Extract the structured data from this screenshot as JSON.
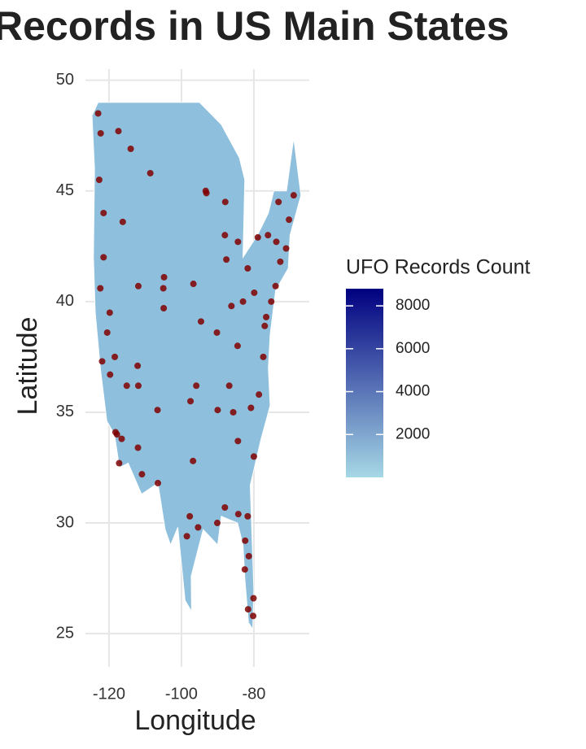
{
  "chart_data": {
    "type": "map-scatter",
    "title": "Records in US Main States",
    "xlabel": "Longitude",
    "ylabel": "Latitude",
    "xlim": [
      -126.5,
      -64.7
    ],
    "ylim": [
      23.5,
      50.5
    ],
    "xticks": [
      -120,
      -100,
      -80
    ],
    "yticks": [
      25,
      30,
      35,
      40,
      45,
      50
    ],
    "grid": true,
    "point_color": "#800000",
    "x": [
      -122.3,
      -122.7,
      -123.0,
      -121.5,
      -120.5,
      -117.4,
      -119.7,
      -116.2,
      -114.0,
      -111.9,
      -112.0,
      -104.9,
      -105.0,
      -108.6,
      -106.6,
      -110.9,
      -111.9,
      -115.1,
      -117.2,
      -118.2,
      -118.4,
      -121.9,
      -122.4,
      -121.5,
      -119.8,
      -117.8,
      -116.5,
      -112.1,
      -106.5,
      -104.8,
      -97.5,
      -96.8,
      -95.4,
      -98.5,
      -97.7,
      -95.9,
      -94.6,
      -90.2,
      -93.3,
      -96.7,
      -87.6,
      -88.0,
      -86.2,
      -84.4,
      -83.0,
      -81.7,
      -84.5,
      -85.7,
      -86.8,
      -90.0,
      -90.1,
      -84.4,
      -81.4,
      -80.2,
      -82.5,
      -81.7,
      -80.8,
      -78.6,
      -77.4,
      -77.0,
      -76.6,
      -75.2,
      -74.0,
      -73.8,
      -71.1,
      -72.7,
      -70.3,
      -69.0,
      -79.9,
      -78.9,
      -76.1,
      -73.2,
      -80.1,
      -81.6,
      -82.4,
      -80.0,
      -84.3,
      -88.0,
      -87.9,
      -93.1
    ],
    "y": [
      47.6,
      45.5,
      48.5,
      44.0,
      38.6,
      47.7,
      36.7,
      43.6,
      46.9,
      40.7,
      33.4,
      39.7,
      40.6,
      45.8,
      35.1,
      32.2,
      36.2,
      36.2,
      32.7,
      34.1,
      37.5,
      37.3,
      40.6,
      42.0,
      39.5,
      34.0,
      33.8,
      37.1,
      31.8,
      41.1,
      35.5,
      32.8,
      29.8,
      29.4,
      30.3,
      36.2,
      39.1,
      38.6,
      45.0,
      40.8,
      41.9,
      43.0,
      39.8,
      33.7,
      40.0,
      41.5,
      38.0,
      35.0,
      36.2,
      35.1,
      30.0,
      42.7,
      28.5,
      25.8,
      27.9,
      30.3,
      35.2,
      35.8,
      37.5,
      38.9,
      39.3,
      40.0,
      40.7,
      42.7,
      42.4,
      41.8,
      43.7,
      44.8,
      40.4,
      42.9,
      43.0,
      44.5,
      26.6,
      26.1,
      29.2,
      33.0,
      30.4,
      30.7,
      44.5,
      44.9
    ],
    "legend": {
      "title": "UFO Records Count",
      "lim": [
        0,
        8800
      ],
      "ticks": [
        2000,
        4000,
        6000,
        8000
      ],
      "colors": [
        "#a6d8e6",
        "#000080"
      ]
    }
  }
}
